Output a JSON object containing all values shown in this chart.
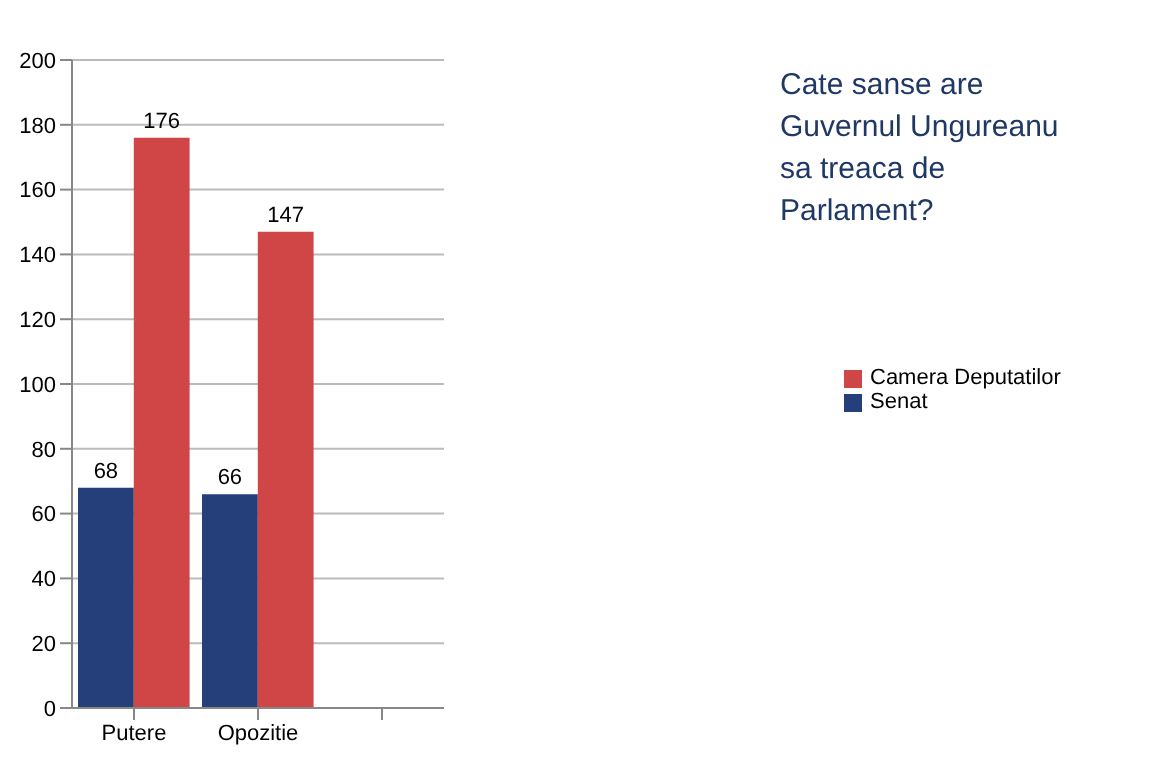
{
  "chart_data": {
    "type": "bar",
    "title": "Cate sanse are Guvernul Ungureanu sa treaca de Parlament?",
    "categories": [
      "Putere",
      "Opozitie",
      null
    ],
    "series": [
      {
        "name": "Senat",
        "color": "#243f7a",
        "values": [
          68,
          66,
          null
        ]
      },
      {
        "name": "Camera Deputatilor",
        "color": "#d04545",
        "values": [
          176,
          147,
          null
        ]
      }
    ],
    "ylim": [
      0,
      200
    ],
    "yticks": [
      0,
      20,
      40,
      60,
      80,
      100,
      120,
      140,
      160,
      180,
      200
    ],
    "grid": "y",
    "legend": "right",
    "data_labels": true
  }
}
